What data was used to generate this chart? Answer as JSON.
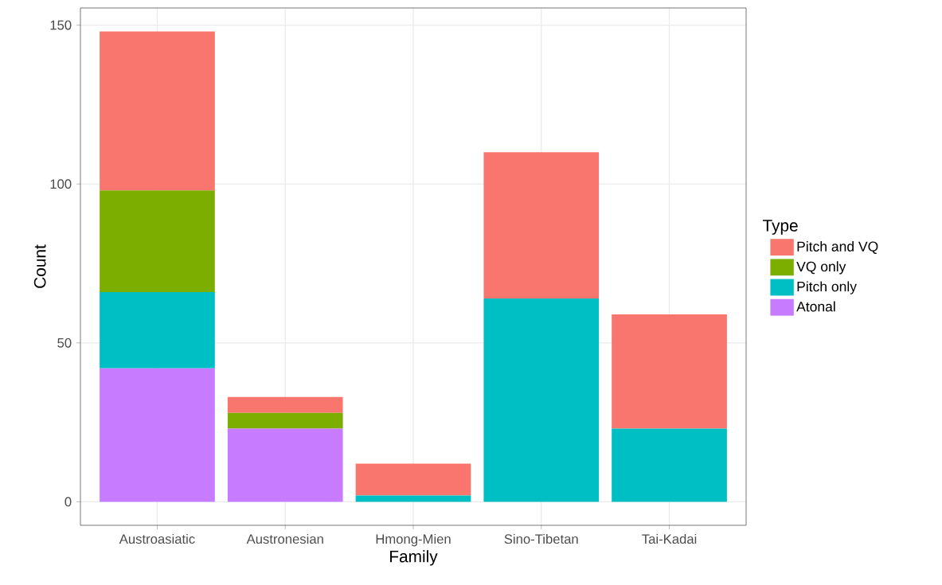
{
  "chart_data": {
    "type": "bar",
    "stacked": true,
    "xlabel": "Family",
    "ylabel": "Count",
    "legend_title": "Type",
    "legend": "right",
    "grid": true,
    "categories": [
      "Austroasiatic",
      "Austronesian",
      "Hmong-Mien",
      "Sino-Tibetan",
      "Tai-Kadai"
    ],
    "ylim": [
      -7.4,
      155.4
    ],
    "yticks": [
      0,
      50,
      100,
      150
    ],
    "series": [
      {
        "name": "Atonal",
        "color": "#C77CFF",
        "values": [
          42,
          23,
          0,
          0,
          0
        ]
      },
      {
        "name": "Pitch only",
        "color": "#00BFC4",
        "values": [
          24,
          0,
          2,
          64,
          23
        ]
      },
      {
        "name": "VQ only",
        "color": "#7CAE00",
        "values": [
          32,
          5,
          0,
          0,
          0
        ]
      },
      {
        "name": "Pitch and VQ",
        "color": "#F8766D",
        "values": [
          50,
          5,
          10,
          46,
          36
        ]
      }
    ]
  }
}
